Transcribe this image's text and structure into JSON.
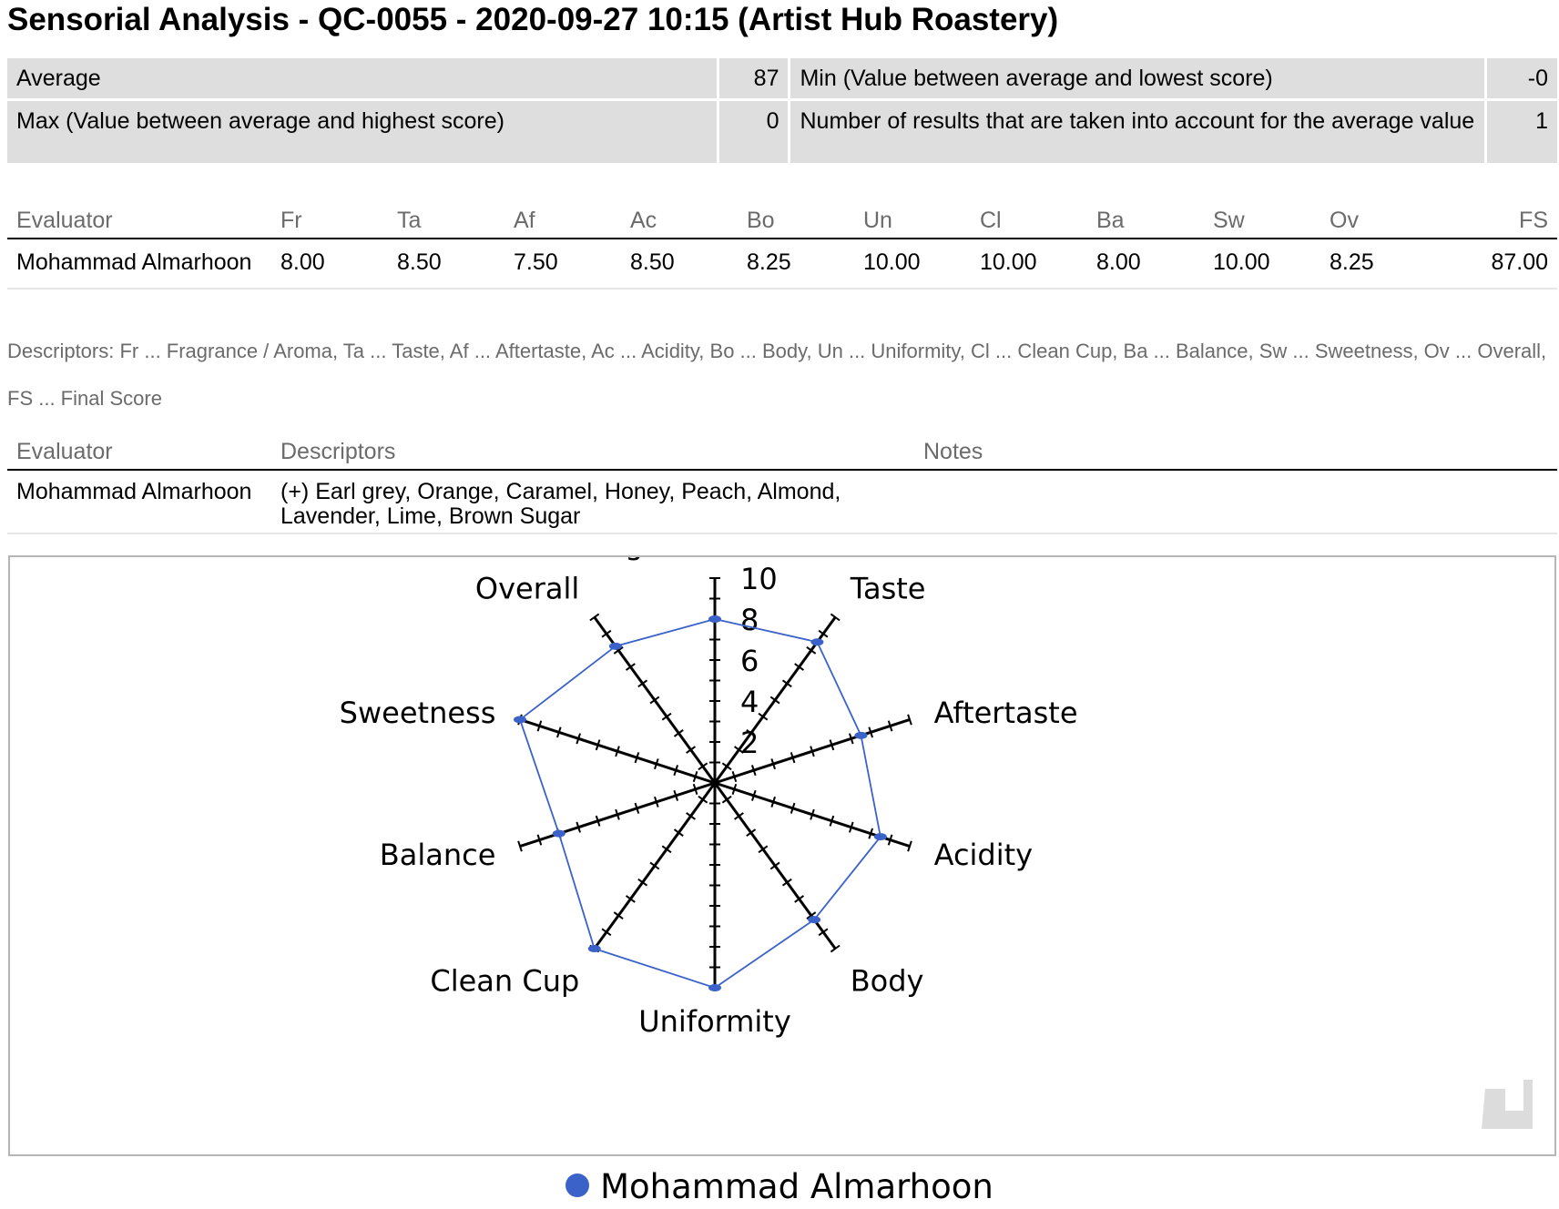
{
  "title": "Sensorial Analysis - QC-0055 - 2020-09-27 10:15 (Artist Hub Roastery)",
  "summary": {
    "average_label": "Average",
    "average_value": "87",
    "min_label": "Min (Value between average and lowest score)",
    "min_value": "-0",
    "max_label": "Max (Value between average and highest score)",
    "max_value": "0",
    "count_label": "Number of results that are taken into account for the average value",
    "count_value": "1"
  },
  "scores_table": {
    "headers": [
      "Evaluator",
      "Fr",
      "Ta",
      "Af",
      "Ac",
      "Bo",
      "Un",
      "Cl",
      "Ba",
      "Sw",
      "Ov",
      "FS"
    ],
    "rows": [
      [
        "Mohammad Almarhoon",
        "8.00",
        "8.50",
        "7.50",
        "8.50",
        "8.25",
        "10.00",
        "10.00",
        "8.00",
        "10.00",
        "8.25",
        "87.00"
      ]
    ]
  },
  "descriptor_legend": "Descriptors: Fr ... Fragrance / Aroma, Ta ... Taste, Af ... Aftertaste, Ac ... Acidity, Bo ... Body, Un ... Uniformity, Cl ... Clean Cup, Ba ... Balance, Sw ... Sweetness, Ov ... Overall, FS ... Final Score",
  "notes_table": {
    "headers": [
      "Evaluator",
      "Descriptors",
      "Notes"
    ],
    "rows": [
      [
        "Mohammad Almarhoon",
        "(+) Earl grey, Orange, Caramel, Honey, Peach, Almond, Lavender, Lime, Brown Sugar",
        ""
      ]
    ]
  },
  "chart_data": {
    "type": "radar",
    "axes": [
      "Fragrance / Aroma",
      "Taste",
      "Aftertaste",
      "Acidity",
      "Body",
      "Uniformity",
      "Clean Cup",
      "Balance",
      "Sweetness",
      "Overall"
    ],
    "range": [
      0,
      10
    ],
    "tick_labels": [
      "2",
      "4",
      "6",
      "8",
      "10"
    ],
    "series": [
      {
        "name": "Mohammad Almarhoon",
        "values": [
          8.0,
          8.5,
          7.5,
          8.5,
          8.25,
          10.0,
          10.0,
          8.0,
          10.0,
          8.25
        ],
        "color": "#3a62c9"
      }
    ],
    "grid": false,
    "legend_position": "bottom"
  }
}
